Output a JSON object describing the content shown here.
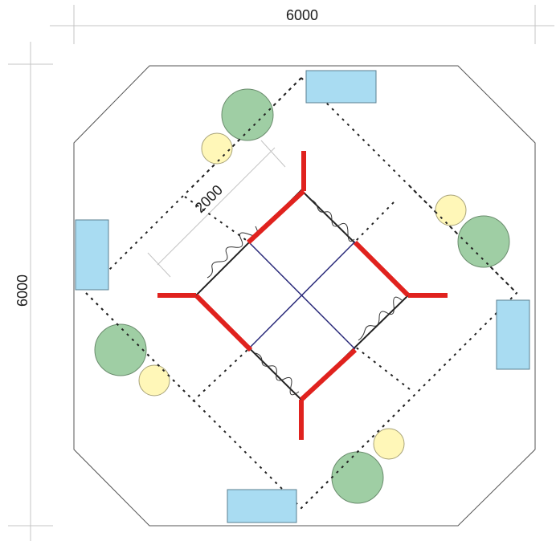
{
  "dimensions": {
    "width_label": "6000",
    "height_label": "6000",
    "module_label": "2000"
  },
  "colors": {
    "outline": "#555555",
    "dimension_line": "#bfbfbf",
    "dotted_grid": "#222222",
    "frame": "#222222",
    "cross_beams": "#2a2a7a",
    "wall_panels": "#e0221e",
    "benches": "#a9dcf2",
    "bench_outline": "#5a7f90",
    "trees": "#9fcea4",
    "tree_outline": "#6a8c6d",
    "shrubs": "#fff7b8",
    "shrub_outline": "#a8a37a"
  },
  "elements": {
    "benches": 4,
    "trees": 4,
    "shrubs": 4,
    "wall_arms": 4
  }
}
